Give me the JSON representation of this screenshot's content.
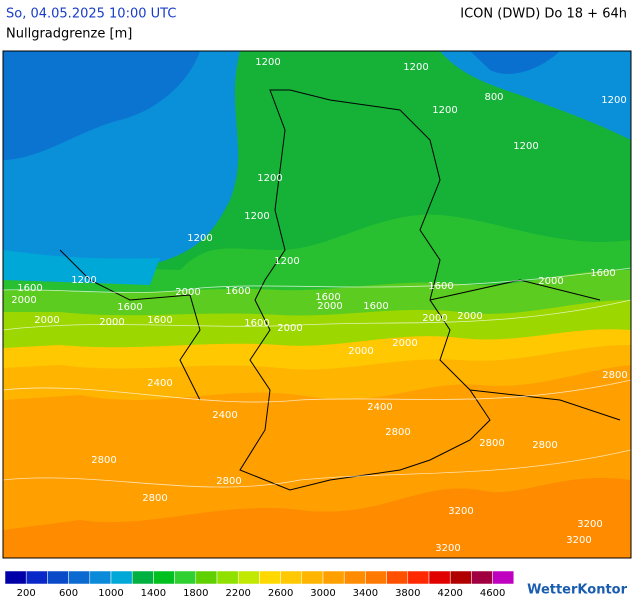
{
  "header": {
    "datetime": "So, 04.05.2025 10:00 UTC",
    "model": "ICON (DWD) Do 18 + 64h",
    "title": "Nullgradgrenze [m]"
  },
  "contour_labels": [
    1200,
    1200,
    800,
    1200,
    1200,
    1200,
    1200,
    1200,
    1200,
    1200,
    1200,
    1600,
    2000,
    1600,
    1600,
    2000,
    2000,
    1600,
    1600,
    1600,
    1600,
    2000,
    2000,
    2000,
    1600,
    1600,
    2000,
    2000,
    2000,
    2000,
    2000,
    2400,
    2400,
    2400,
    2800,
    2800,
    2800,
    2800,
    2800,
    2800,
    2800,
    3200,
    3200,
    3200,
    3200
  ],
  "colorbar": {
    "colors": [
      "#0000a8",
      "#0a28c8",
      "#0a4ac8",
      "#0a6ad0",
      "#0a8ad8",
      "#00a8d8",
      "#00b040",
      "#00c020",
      "#30d030",
      "#60d000",
      "#90e000",
      "#c0e800",
      "#ffd800",
      "#ffc800",
      "#ffb400",
      "#ffa000",
      "#ff8c00",
      "#ff7800",
      "#ff5000",
      "#ff2800",
      "#e00000",
      "#b00000",
      "#a00040",
      "#c000c0"
    ],
    "labels": [
      200,
      600,
      1000,
      1400,
      1800,
      2200,
      2600,
      3000,
      3400,
      3800,
      4200,
      4600
    ]
  },
  "logo": "WetterKontor"
}
